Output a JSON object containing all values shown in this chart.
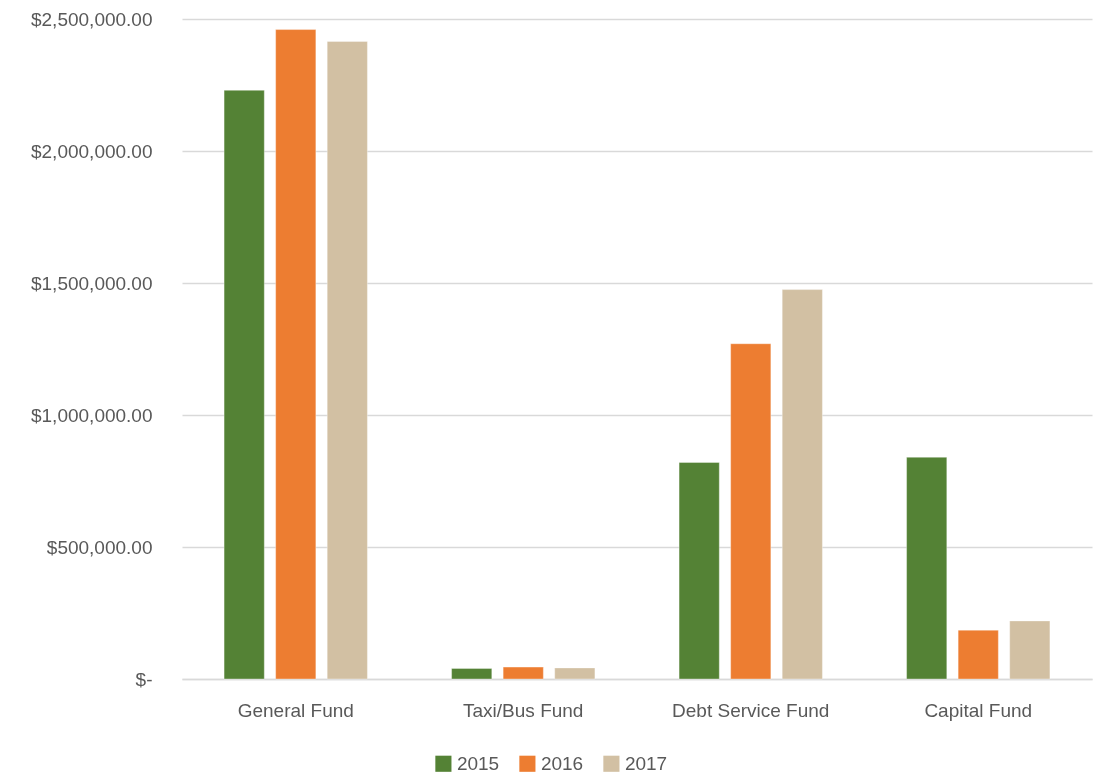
{
  "chart_data": {
    "type": "bar",
    "categories": [
      "General Fund",
      "Taxi/Bus Fund",
      "Debt Service Fund",
      "Capital Fund"
    ],
    "series": [
      {
        "name": "2015",
        "color": "#548235",
        "values": [
          2230000,
          40000,
          820000,
          840000
        ]
      },
      {
        "name": "2016",
        "color": "#ed7d31",
        "values": [
          2460000,
          45000,
          1270000,
          185000
        ]
      },
      {
        "name": "2017",
        "color": "#d2c0a3",
        "values": [
          2415000,
          42000,
          1475000,
          220000
        ]
      }
    ],
    "ylim": [
      0,
      2500000
    ],
    "yticks": [
      {
        "value": 0,
        "label": "$-"
      },
      {
        "value": 500000,
        "label": "$500,000.00"
      },
      {
        "value": 1000000,
        "label": "$1,000,000.00"
      },
      {
        "value": 1500000,
        "label": "$1,500,000.00"
      },
      {
        "value": 2000000,
        "label": "$2,000,000.00"
      },
      {
        "value": 2500000,
        "label": "$2,500,000.00"
      }
    ],
    "grid": "y",
    "legend": "bottom"
  }
}
